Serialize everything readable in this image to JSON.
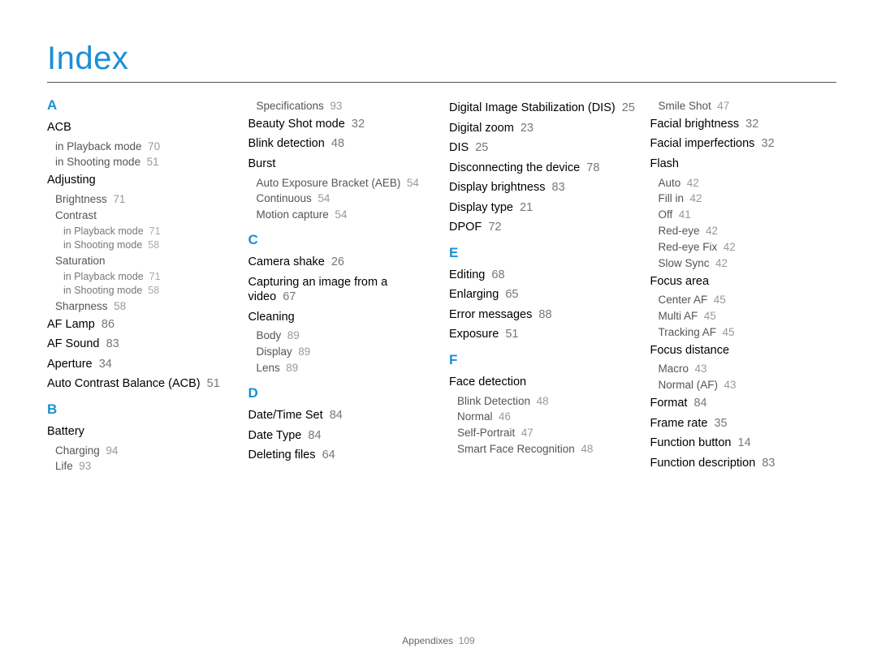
{
  "title": "Index",
  "footer": {
    "label": "Appendixes",
    "page": "109"
  },
  "colors": {
    "accent": "#1b8fd6",
    "text": "#000000",
    "sub": "#555555",
    "sub2": "#777777",
    "pg": "#888888",
    "rule": "#555555",
    "bg": "#ffffff"
  },
  "columns": [
    [
      {
        "type": "letter",
        "text": "A"
      },
      {
        "type": "main",
        "text": "ACB"
      },
      {
        "type": "sub1",
        "text": "in Playback mode",
        "pg": "70"
      },
      {
        "type": "sub1",
        "text": "in Shooting mode",
        "pg": "51"
      },
      {
        "type": "main",
        "text": "Adjusting"
      },
      {
        "type": "sub1",
        "text": "Brightness",
        "pg": "71"
      },
      {
        "type": "sub1",
        "text": "Contrast"
      },
      {
        "type": "sub2",
        "text": "in Playback mode",
        "pg": "71"
      },
      {
        "type": "sub2",
        "text": "in Shooting mode",
        "pg": "58"
      },
      {
        "type": "sub1",
        "text": "Saturation"
      },
      {
        "type": "sub2",
        "text": "in Playback mode",
        "pg": "71"
      },
      {
        "type": "sub2",
        "text": "in Shooting mode",
        "pg": "58"
      },
      {
        "type": "sub1",
        "text": "Sharpness",
        "pg": "58"
      },
      {
        "type": "main",
        "text": "AF Lamp",
        "pg": "86"
      },
      {
        "type": "main",
        "text": "AF Sound",
        "pg": "83"
      },
      {
        "type": "main",
        "text": "Aperture",
        "pg": "34"
      },
      {
        "type": "main",
        "text": "Auto Contrast Balance (ACB)",
        "pg": "51"
      },
      {
        "type": "letter",
        "text": "B"
      },
      {
        "type": "main",
        "text": "Battery"
      },
      {
        "type": "sub1",
        "text": "Charging",
        "pg": "94"
      },
      {
        "type": "sub1",
        "text": "Life",
        "pg": "93"
      }
    ],
    [
      {
        "type": "sub1",
        "text": "Specifications",
        "pg": "93"
      },
      {
        "type": "main",
        "text": "Beauty Shot mode",
        "pg": "32"
      },
      {
        "type": "main",
        "text": "Blink detection",
        "pg": "48"
      },
      {
        "type": "main",
        "text": "Burst"
      },
      {
        "type": "sub1",
        "text": "Auto Exposure Bracket (AEB)",
        "pg": "54"
      },
      {
        "type": "sub1",
        "text": "Continuous",
        "pg": "54"
      },
      {
        "type": "sub1",
        "text": "Motion capture",
        "pg": "54"
      },
      {
        "type": "letter",
        "text": "C"
      },
      {
        "type": "main",
        "text": "Camera shake",
        "pg": "26"
      },
      {
        "type": "main",
        "text": "Capturing an image from a video",
        "pg": "67"
      },
      {
        "type": "main",
        "text": "Cleaning"
      },
      {
        "type": "sub1",
        "text": "Body",
        "pg": "89"
      },
      {
        "type": "sub1",
        "text": "Display",
        "pg": "89"
      },
      {
        "type": "sub1",
        "text": "Lens",
        "pg": "89"
      },
      {
        "type": "letter",
        "text": "D"
      },
      {
        "type": "main",
        "text": "Date/Time Set",
        "pg": "84"
      },
      {
        "type": "main",
        "text": "Date Type",
        "pg": "84"
      },
      {
        "type": "main",
        "text": "Deleting files",
        "pg": "64"
      }
    ],
    [
      {
        "type": "main",
        "text": "Digital Image Stabilization (DIS)",
        "pg": "25"
      },
      {
        "type": "main",
        "text": "Digital zoom",
        "pg": "23"
      },
      {
        "type": "main",
        "text": "DIS",
        "pg": "25"
      },
      {
        "type": "main",
        "text": "Disconnecting the device",
        "pg": "78"
      },
      {
        "type": "main",
        "text": "Display brightness",
        "pg": "83"
      },
      {
        "type": "main",
        "text": "Display type",
        "pg": "21"
      },
      {
        "type": "main",
        "text": "DPOF",
        "pg": "72"
      },
      {
        "type": "letter",
        "text": "E"
      },
      {
        "type": "main",
        "text": "Editing",
        "pg": "68"
      },
      {
        "type": "main",
        "text": "Enlarging",
        "pg": "65"
      },
      {
        "type": "main",
        "text": "Error messages",
        "pg": "88"
      },
      {
        "type": "main",
        "text": "Exposure",
        "pg": "51"
      },
      {
        "type": "letter",
        "text": "F"
      },
      {
        "type": "main",
        "text": "Face detection"
      },
      {
        "type": "sub1",
        "text": "Blink Detection",
        "pg": "48"
      },
      {
        "type": "sub1",
        "text": "Normal",
        "pg": "46"
      },
      {
        "type": "sub1",
        "text": "Self-Portrait",
        "pg": "47"
      },
      {
        "type": "sub1",
        "text": "Smart Face Recognition",
        "pg": "48"
      }
    ],
    [
      {
        "type": "sub1",
        "text": "Smile Shot",
        "pg": "47"
      },
      {
        "type": "main",
        "text": "Facial brightness",
        "pg": "32"
      },
      {
        "type": "main",
        "text": "Facial imperfections",
        "pg": "32"
      },
      {
        "type": "main",
        "text": "Flash"
      },
      {
        "type": "sub1",
        "text": "Auto",
        "pg": "42"
      },
      {
        "type": "sub1",
        "text": "Fill in",
        "pg": "42"
      },
      {
        "type": "sub1",
        "text": "Off",
        "pg": "41"
      },
      {
        "type": "sub1",
        "text": "Red-eye",
        "pg": "42"
      },
      {
        "type": "sub1",
        "text": "Red-eye Fix",
        "pg": "42"
      },
      {
        "type": "sub1",
        "text": "Slow Sync",
        "pg": "42"
      },
      {
        "type": "main",
        "text": "Focus area"
      },
      {
        "type": "sub1",
        "text": "Center AF",
        "pg": "45"
      },
      {
        "type": "sub1",
        "text": "Multi AF",
        "pg": "45"
      },
      {
        "type": "sub1",
        "text": "Tracking AF",
        "pg": "45"
      },
      {
        "type": "main",
        "text": "Focus distance"
      },
      {
        "type": "sub1",
        "text": "Macro",
        "pg": "43"
      },
      {
        "type": "sub1",
        "text": "Normal (AF)",
        "pg": "43"
      },
      {
        "type": "main",
        "text": "Format",
        "pg": "84"
      },
      {
        "type": "main",
        "text": "Frame rate",
        "pg": "35"
      },
      {
        "type": "main",
        "text": "Function button",
        "pg": "14"
      },
      {
        "type": "main",
        "text": "Function description",
        "pg": "83"
      }
    ]
  ]
}
